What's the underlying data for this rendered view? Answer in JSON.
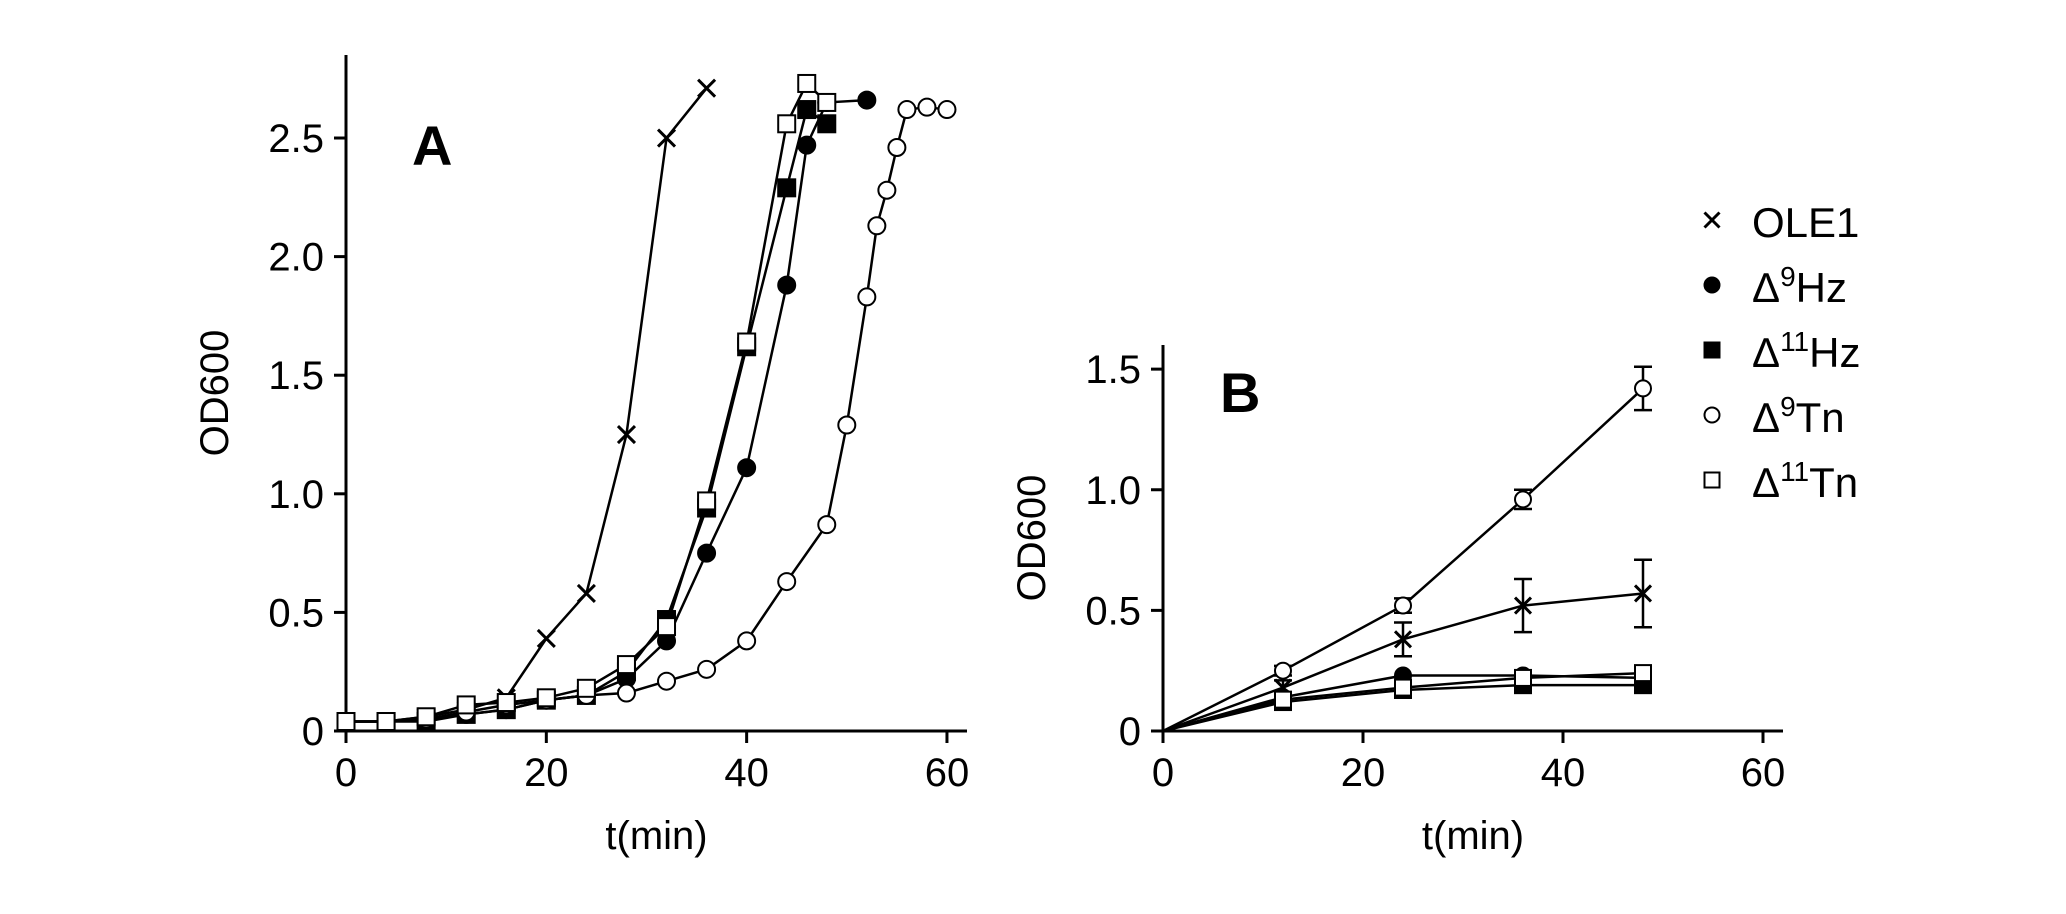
{
  "chart_data": [
    {
      "panel": "A",
      "type": "line",
      "xlabel": "t(min)",
      "ylabel": "OD600",
      "xlim": [
        0,
        62
      ],
      "ylim": [
        0,
        2.85
      ],
      "xticks": [
        0,
        20,
        40,
        60
      ],
      "xtick_labels": [
        "0",
        "20",
        "40",
        "60"
      ],
      "yticks": [
        0,
        0.5,
        1.0,
        1.5,
        2.0,
        2.5
      ],
      "ytick_labels": [
        "0",
        "0.5",
        "1.0",
        "1.5",
        "2.0",
        "2.5"
      ],
      "grid": false,
      "series": [
        {
          "name": "OLE1",
          "marker": "cross",
          "x": [
            0,
            4,
            8,
            12,
            16,
            20,
            24,
            28,
            32,
            36
          ],
          "y": [
            0.04,
            0.04,
            0.06,
            0.09,
            0.14,
            0.39,
            0.58,
            1.25,
            2.5,
            2.71
          ]
        },
        {
          "name": "Δ9Hz",
          "marker": "filled-circle",
          "x": [
            0,
            4,
            8,
            12,
            16,
            20,
            24,
            28,
            32,
            36,
            40,
            44,
            46,
            48,
            52
          ],
          "y": [
            0.04,
            0.04,
            0.05,
            0.07,
            0.09,
            0.13,
            0.15,
            0.22,
            0.38,
            0.75,
            1.11,
            1.88,
            2.47,
            2.65,
            2.66
          ]
        },
        {
          "name": "Δ11Hz",
          "marker": "filled-square",
          "x": [
            0,
            4,
            8,
            12,
            16,
            20,
            24,
            28,
            32,
            36,
            40,
            44,
            46,
            48
          ],
          "y": [
            0.04,
            0.04,
            0.04,
            0.07,
            0.09,
            0.13,
            0.15,
            0.25,
            0.47,
            0.94,
            1.62,
            2.29,
            2.62,
            2.56
          ]
        },
        {
          "name": "Δ9Tn",
          "marker": "open-circle",
          "x": [
            0,
            4,
            8,
            12,
            16,
            20,
            24,
            28,
            32,
            36,
            40,
            44,
            48,
            50,
            52,
            53,
            54,
            55,
            56,
            58,
            60
          ],
          "y": [
            0.04,
            0.04,
            0.05,
            0.08,
            0.11,
            0.13,
            0.15,
            0.16,
            0.21,
            0.26,
            0.38,
            0.63,
            0.87,
            1.29,
            1.83,
            2.13,
            2.28,
            2.46,
            2.62,
            2.63,
            2.62
          ]
        },
        {
          "name": "Δ11Tn",
          "marker": "open-square",
          "x": [
            0,
            4,
            8,
            12,
            16,
            20,
            24,
            28,
            32,
            36,
            40,
            44,
            46,
            48
          ],
          "y": [
            0.04,
            0.04,
            0.06,
            0.11,
            0.12,
            0.14,
            0.18,
            0.28,
            0.44,
            0.97,
            1.64,
            2.56,
            2.73,
            2.65
          ]
        }
      ]
    },
    {
      "panel": "B",
      "type": "line",
      "xlabel": "t(min)",
      "ylabel": "OD600",
      "xlim": [
        0,
        62
      ],
      "ylim": [
        0,
        1.6
      ],
      "xticks": [
        0,
        20,
        40,
        60
      ],
      "xtick_labels": [
        "0",
        "20",
        "40",
        "60"
      ],
      "yticks": [
        0,
        0.5,
        1.0,
        1.5
      ],
      "ytick_labels": [
        "0",
        "0.5",
        "1.0",
        "1.5"
      ],
      "grid": false,
      "series": [
        {
          "name": "OLE1",
          "marker": "cross",
          "x": [
            0,
            12,
            24,
            36,
            48
          ],
          "y": [
            0,
            0.18,
            0.38,
            0.52,
            0.57
          ],
          "yerr": [
            0,
            0.03,
            0.07,
            0.11,
            0.14
          ]
        },
        {
          "name": "Δ9Hz",
          "marker": "filled-circle",
          "x": [
            0,
            12,
            24,
            36,
            48
          ],
          "y": [
            0,
            0.14,
            0.23,
            0.23,
            0.22
          ],
          "yerr": [
            0,
            0,
            0,
            0,
            0
          ]
        },
        {
          "name": "Δ11Hz",
          "marker": "filled-square",
          "x": [
            0,
            12,
            24,
            36,
            48
          ],
          "y": [
            0,
            0.12,
            0.17,
            0.19,
            0.19
          ],
          "yerr": [
            0,
            0,
            0,
            0,
            0
          ]
        },
        {
          "name": "Δ9Tn",
          "marker": "open-circle",
          "x": [
            0,
            12,
            24,
            36,
            48
          ],
          "y": [
            0,
            0.25,
            0.52,
            0.96,
            1.42
          ],
          "yerr": [
            0,
            0.02,
            0.03,
            0.04,
            0.09
          ]
        },
        {
          "name": "Δ11Tn",
          "marker": "open-square",
          "x": [
            0,
            12,
            24,
            36,
            48
          ],
          "y": [
            0,
            0.13,
            0.18,
            0.22,
            0.24
          ],
          "yerr": [
            0,
            0,
            0,
            0,
            0
          ]
        }
      ]
    }
  ],
  "legend": {
    "placement": "right",
    "items": [
      {
        "marker": "cross",
        "symbol": "Δ",
        "sup": "",
        "tail": "OLE1"
      },
      {
        "marker": "filled-circle",
        "symbol": "Δ",
        "sup": "9",
        "tail": "Hz"
      },
      {
        "marker": "filled-square",
        "symbol": "Δ",
        "sup": "11",
        "tail": "Hz"
      },
      {
        "marker": "open-circle",
        "symbol": "Δ",
        "sup": "9",
        "tail": "Tn"
      },
      {
        "marker": "open-square",
        "symbol": "Δ",
        "sup": "11",
        "tail": "Tn"
      }
    ]
  },
  "colors": {
    "ink": "#000000",
    "background": "#ffffff"
  }
}
